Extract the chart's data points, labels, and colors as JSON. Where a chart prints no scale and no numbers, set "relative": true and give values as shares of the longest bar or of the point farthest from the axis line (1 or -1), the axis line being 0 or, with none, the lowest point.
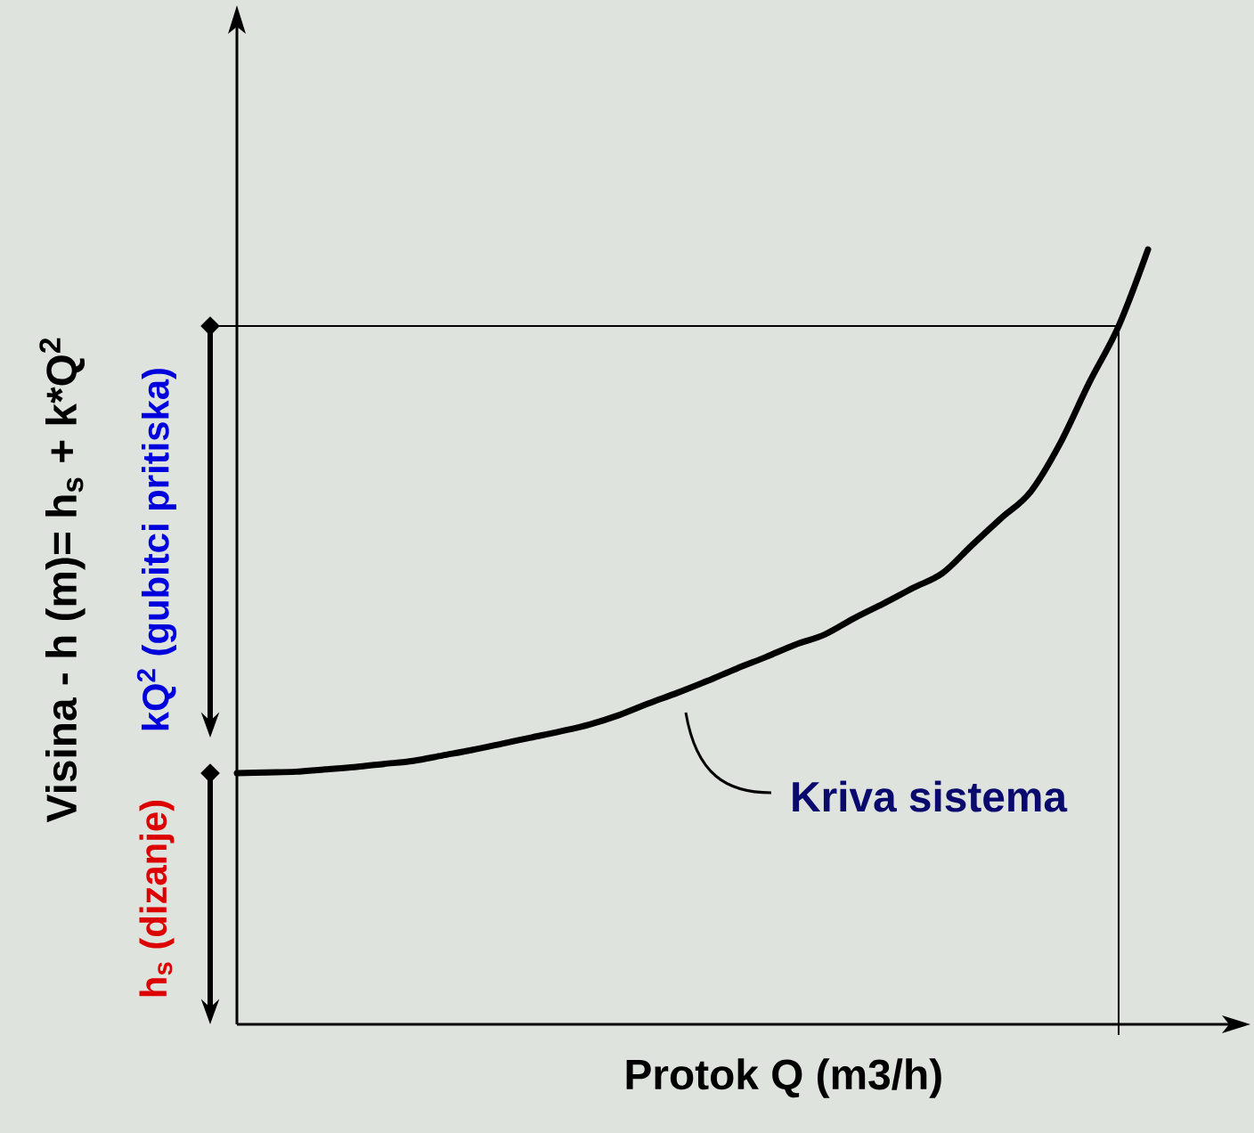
{
  "chart_data": {
    "type": "line",
    "relative": true,
    "marker": "none",
    "xlabel": "Protok Q (m3/h)",
    "ylabel": "Visina - h (m)= h$_{s}$ + k*Q$^{2}$",
    "categories": [
      null,
      null,
      null,
      null,
      null,
      null,
      null,
      null,
      null,
      null,
      null,
      null,
      null,
      null,
      null,
      null,
      null,
      null,
      null,
      null,
      null,
      null,
      null,
      null,
      null,
      null,
      null,
      null,
      null,
      null,
      null,
      null
    ],
    "series": [
      {
        "color": "#000000",
        "values": [
          0.324,
          0.325,
          0.326,
          0.329,
          0.332,
          0.336,
          0.34,
          0.347,
          0.354,
          0.362,
          0.37,
          0.378,
          0.387,
          0.399,
          0.414,
          0.428,
          0.443,
          0.459,
          0.474,
          0.49,
          0.503,
          0.524,
          0.543,
          0.563,
          0.582,
          0.618,
          0.653,
          0.687,
          0.749,
          0.828,
          0.901,
          1
        ]
      }
    ],
    "ref_lines": [
      {
        "axis": "y",
        "value": 0.901
      }
    ],
    "annotations": [
      "Kriva sistema",
      "h$_{s}$ (dizanje)",
      "kQ$^{2}$ (gubitci pritiska)"
    ]
  }
}
